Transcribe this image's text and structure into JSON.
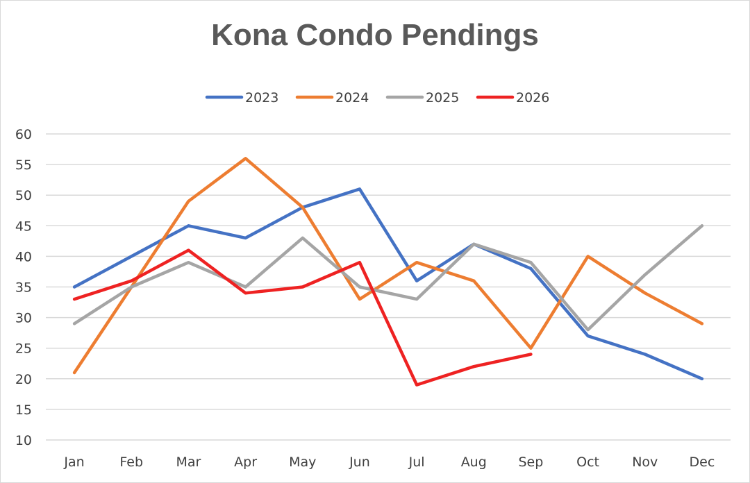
{
  "chart_data": {
    "type": "line",
    "title": "Kona Condo Pendings",
    "xlabel": "",
    "ylabel": "",
    "categories": [
      "Jan",
      "Feb",
      "Mar",
      "Apr",
      "May",
      "Jun",
      "Jul",
      "Aug",
      "Sep",
      "Oct",
      "Nov",
      "Dec"
    ],
    "ylim": [
      10,
      60
    ],
    "yticks": [
      10,
      15,
      20,
      25,
      30,
      35,
      40,
      45,
      50,
      55,
      60
    ],
    "grid": "horizontal",
    "legend": "top-center",
    "series": [
      {
        "name": "2023",
        "color": "#4472c4",
        "values": [
          35,
          40,
          45,
          43,
          48,
          51,
          36,
          42,
          38,
          27,
          24,
          20
        ]
      },
      {
        "name": "2024",
        "color": "#ed7d31",
        "values": [
          21,
          35,
          49,
          56,
          48,
          33,
          39,
          36,
          25,
          40,
          34,
          29
        ]
      },
      {
        "name": "2025",
        "color": "#a5a5a5",
        "values": [
          29,
          35,
          39,
          35,
          43,
          35,
          33,
          42,
          39,
          28,
          37,
          45
        ]
      },
      {
        "name": "2026",
        "color": "#ee2222",
        "values": [
          33,
          36,
          41,
          34,
          35,
          39,
          19,
          22,
          24,
          null,
          null,
          null
        ]
      }
    ]
  }
}
